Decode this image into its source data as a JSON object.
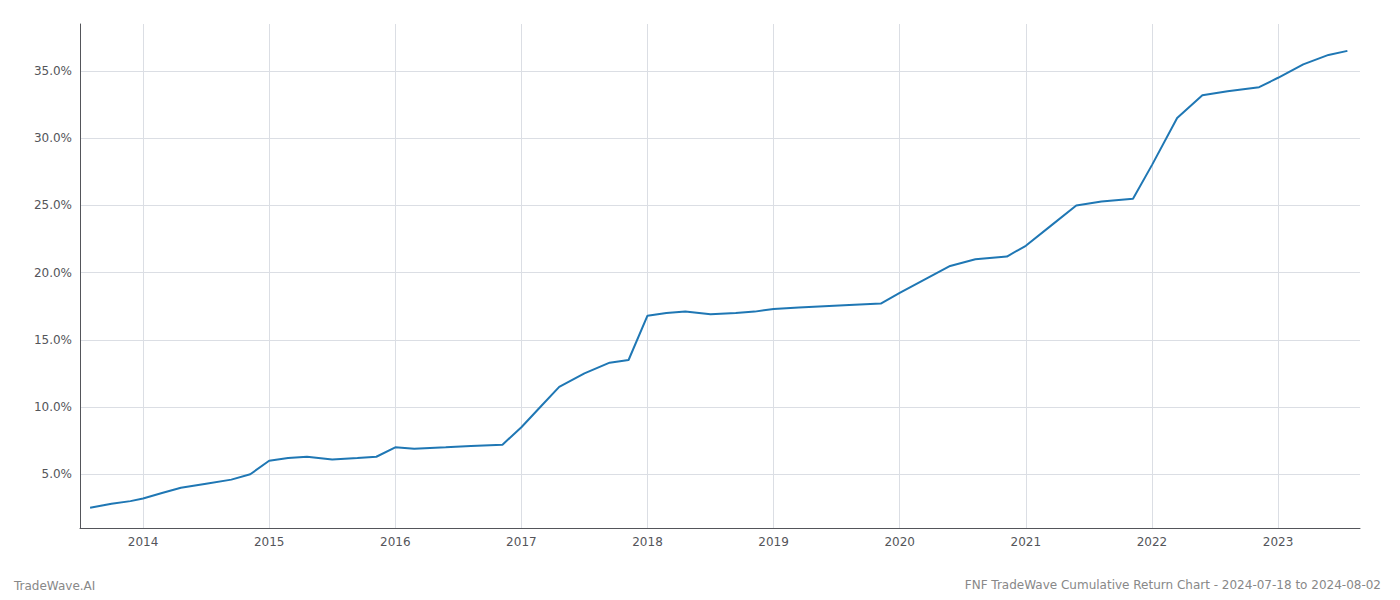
{
  "chart_data": {
    "type": "line",
    "title": "FNF TradeWave Cumulative Return Chart - 2024-07-18 to 2024-08-02",
    "annotations": [
      "TradeWave.AI"
    ],
    "color": "#1f77b4",
    "grid": true,
    "x": [
      2013.58,
      2013.75,
      2013.9,
      2014.0,
      2014.15,
      2014.3,
      2014.5,
      2014.7,
      2014.85,
      2015.0,
      2015.15,
      2015.3,
      2015.5,
      2015.7,
      2015.85,
      2016.0,
      2016.15,
      2016.4,
      2016.6,
      2016.85,
      2017.0,
      2017.15,
      2017.3,
      2017.5,
      2017.7,
      2017.85,
      2018.0,
      2018.15,
      2018.3,
      2018.5,
      2018.7,
      2018.85,
      2019.0,
      2019.2,
      2019.4,
      2019.6,
      2019.85,
      2020.0,
      2020.2,
      2020.4,
      2020.6,
      2020.85,
      2021.0,
      2021.2,
      2021.4,
      2021.6,
      2021.85,
      2022.0,
      2022.2,
      2022.4,
      2022.6,
      2022.85,
      2023.0,
      2023.2,
      2023.4,
      2023.55
    ],
    "values": [
      2.5,
      2.8,
      3.0,
      3.2,
      3.6,
      4.0,
      4.3,
      4.6,
      5.0,
      6.0,
      6.2,
      6.3,
      6.1,
      6.2,
      6.3,
      7.0,
      6.9,
      7.0,
      7.1,
      7.2,
      8.5,
      10.0,
      11.5,
      12.5,
      13.3,
      13.5,
      16.8,
      17.0,
      17.1,
      16.9,
      17.0,
      17.1,
      17.3,
      17.4,
      17.5,
      17.6,
      17.7,
      18.5,
      19.5,
      20.5,
      21.0,
      21.2,
      22.0,
      23.5,
      25.0,
      25.3,
      25.5,
      28.0,
      31.5,
      33.2,
      33.5,
      33.8,
      34.5,
      35.5,
      36.2,
      36.5
    ],
    "xlim": [
      2013.5,
      2023.65
    ],
    "xticks": [
      2014,
      2015,
      2016,
      2017,
      2018,
      2019,
      2020,
      2021,
      2022,
      2023
    ],
    "ylim": [
      1.0,
      38.5
    ],
    "yticks": [
      {
        "value": 5.0,
        "label": "5.0%"
      },
      {
        "value": 10.0,
        "label": "10.0%"
      },
      {
        "value": 15.0,
        "label": "15.0%"
      },
      {
        "value": 20.0,
        "label": "20.0%"
      },
      {
        "value": 25.0,
        "label": "25.0%"
      },
      {
        "value": 30.0,
        "label": "30.0%"
      },
      {
        "value": 35.0,
        "label": "35.0%"
      }
    ]
  }
}
